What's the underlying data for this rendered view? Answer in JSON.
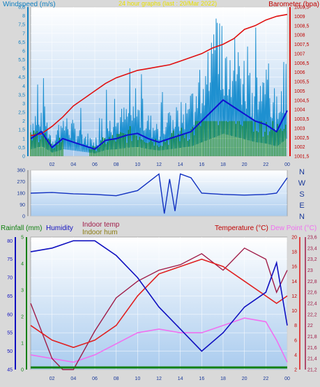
{
  "header": {
    "top_left": "Windspeed (m/s)",
    "top_center": "24 hour graphs (last : 20/Mar 2022)",
    "top_right": "Barometer (hpa)"
  },
  "labels": {
    "rainfall": "Rainfall (mm)",
    "humidity": "Humidity",
    "indoor_temp": "Indoor temp",
    "indoor_hum": "Indoor hum",
    "temperature": "Temperature (°C)",
    "dew_point": "Dew Point (°C)"
  },
  "colors": {
    "windspeed_axis": "#0f7fc0",
    "barometer": "#e01010",
    "title": "#e8e000",
    "wind_avg": "#1010d0",
    "wind_gust": "#1e90d0",
    "wind_green": "#1a8a1a",
    "rain": "#108010",
    "humidity": "#1010c0",
    "indoor_temp": "#a01c48",
    "indoor_hum": "#8a7a10",
    "dew_point": "#f070f0"
  },
  "chart_data": [
    {
      "type": "line",
      "name": "wind-barometer",
      "x_ticks": [
        "02",
        "04",
        "06",
        "08",
        "10",
        "12",
        "14",
        "16",
        "18",
        "20",
        "22",
        "00"
      ],
      "ylim_left": [
        0,
        8.5
      ],
      "y_ticks_left": [
        "0",
        "0,5",
        "1",
        "1,5",
        "2",
        "2,5",
        "3",
        "3,5",
        "4",
        "4,5",
        "5",
        "5,5",
        "6",
        "6,5",
        "7",
        "7,5",
        "8",
        "8,5"
      ],
      "ylim_right": [
        1001.5,
        1009.5
      ],
      "y_ticks_right": [
        "1001,5",
        "1002",
        "1002,5",
        "1003",
        "1003,5",
        "1004",
        "1004,5",
        "1005",
        "1005,5",
        "1006",
        "1006,5",
        "1007",
        "1007,5",
        "1008",
        "1008,5",
        "1009",
        "1009,5"
      ],
      "barometer_x": [
        0,
        1,
        2,
        3,
        4,
        5,
        6,
        7,
        8,
        9,
        10,
        11,
        12,
        13,
        14,
        15,
        16,
        17,
        18,
        19,
        20,
        21,
        22,
        23,
        24
      ],
      "barometer_y": [
        1002.6,
        1002.7,
        1003.1,
        1003.6,
        1004.2,
        1004.6,
        1005.0,
        1005.4,
        1005.7,
        1005.9,
        1006.1,
        1006.2,
        1006.3,
        1006.4,
        1006.6,
        1006.8,
        1007.0,
        1007.3,
        1007.5,
        1007.8,
        1008.3,
        1008.5,
        1008.8,
        1009.0,
        1009.1
      ],
      "wind_avg_x": [
        0,
        1,
        2,
        3,
        4,
        5,
        6,
        7,
        8,
        9,
        10,
        11,
        12,
        13,
        14,
        15,
        16,
        17,
        18,
        19,
        20,
        21,
        22,
        23,
        24
      ],
      "wind_avg_y": [
        1.0,
        1.4,
        0.5,
        1.0,
        0.8,
        0.6,
        0.4,
        0.9,
        1.0,
        1.2,
        1.3,
        1.0,
        0.8,
        1.0,
        1.2,
        1.4,
        2.0,
        2.6,
        3.2,
        2.8,
        2.4,
        2.0,
        1.8,
        1.4,
        2.6
      ]
    },
    {
      "type": "line",
      "name": "wind-direction",
      "x_ticks": [],
      "ylim": [
        0,
        360
      ],
      "y_ticks": [
        "0",
        "90",
        "180",
        "270",
        "360"
      ],
      "compass": [
        "N",
        "W",
        "S",
        "E",
        "N"
      ],
      "x": [
        0,
        2,
        4,
        6,
        8,
        10,
        12,
        12.5,
        13,
        13.5,
        14,
        15,
        16,
        18,
        20,
        22,
        23,
        24
      ],
      "y": [
        180,
        185,
        175,
        170,
        160,
        200,
        330,
        20,
        290,
        40,
        330,
        300,
        180,
        170,
        165,
        170,
        180,
        300
      ]
    },
    {
      "type": "line",
      "name": "temperature-humidity",
      "x_ticks": [
        "02",
        "04",
        "06",
        "08",
        "10",
        "12",
        "14",
        "16",
        "18",
        "20",
        "22",
        "00"
      ],
      "ylim_humidity": [
        45,
        81
      ],
      "y_ticks_humidity": [
        "45",
        "50",
        "55",
        "60",
        "65",
        "70",
        "75",
        "80"
      ],
      "ylim_rain": [
        0,
        5
      ],
      "y_ticks_rain": [
        "0",
        "1",
        "2",
        "3",
        "4",
        "5"
      ],
      "ylim_temp": [
        2,
        20
      ],
      "y_ticks_temp": [
        "2",
        "4",
        "6",
        "8",
        "10",
        "12",
        "14",
        "16",
        "18",
        "20"
      ],
      "ylim_indoor": [
        21.2,
        23.6
      ],
      "y_ticks_indoor": [
        "21,2",
        "21,4",
        "21,6",
        "21,8",
        "22",
        "22,2",
        "22,4",
        "22,6",
        "22,8",
        "23",
        "23,2",
        "23,4",
        "23,6"
      ],
      "humidity_x": [
        0,
        2,
        4,
        6,
        8,
        10,
        12,
        14,
        16,
        18,
        20,
        22,
        23,
        24
      ],
      "humidity_y": [
        77,
        78,
        80,
        80,
        76,
        70,
        62,
        56,
        50,
        55,
        62,
        66,
        74,
        57
      ],
      "temperature_x": [
        0,
        2,
        4,
        6,
        8,
        10,
        12,
        14,
        16,
        18,
        20,
        22,
        23,
        24
      ],
      "temperature_y": [
        8,
        6,
        5,
        6,
        8,
        12,
        15,
        16,
        17,
        16,
        14,
        12,
        11,
        12
      ],
      "dew_point_x": [
        0,
        2,
        4,
        6,
        8,
        10,
        12,
        14,
        16,
        18,
        20,
        22,
        23,
        24
      ],
      "dew_point_y": [
        4,
        3.5,
        3,
        4,
        5.5,
        7,
        7.5,
        7,
        7,
        8,
        9,
        8.5,
        6,
        3
      ],
      "indoor_temp_x": [
        0,
        2,
        3,
        4,
        6,
        8,
        10,
        12,
        14,
        16,
        18,
        20,
        22,
        23,
        24
      ],
      "indoor_temp_y": [
        22.4,
        21.4,
        21.2,
        21.2,
        21.9,
        22.5,
        22.8,
        23.0,
        23.1,
        23.3,
        23.0,
        23.4,
        23.2,
        22.6,
        23.0
      ]
    }
  ]
}
